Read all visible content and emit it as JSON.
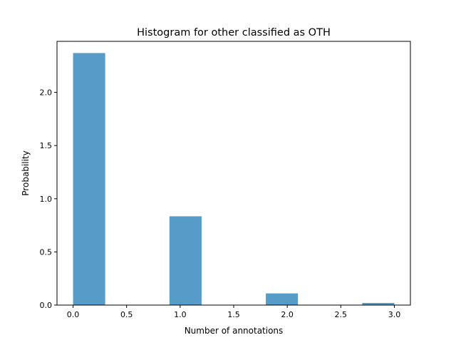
{
  "chart_data": {
    "type": "bar",
    "title": "Histogram for other classified as OTH",
    "xlabel": "Number of annotations",
    "ylabel": "Probability",
    "xlim": [
      -0.15,
      3.15
    ],
    "ylim": [
      0,
      2.48
    ],
    "xticks": [
      "0.0",
      "0.5",
      "1.0",
      "1.5",
      "2.0",
      "2.5",
      "3.0"
    ],
    "yticks": [
      "0.0",
      "0.5",
      "1.0",
      "1.5",
      "2.0"
    ],
    "bins": [
      {
        "start": 0.0,
        "end": 0.3,
        "value": 2.37
      },
      {
        "start": 0.9,
        "end": 1.2,
        "value": 0.835
      },
      {
        "start": 1.8,
        "end": 2.1,
        "value": 0.11
      },
      {
        "start": 2.7,
        "end": 3.0,
        "value": 0.02
      }
    ],
    "bar_color": "#579bc8",
    "grid": false,
    "legend": "none"
  }
}
